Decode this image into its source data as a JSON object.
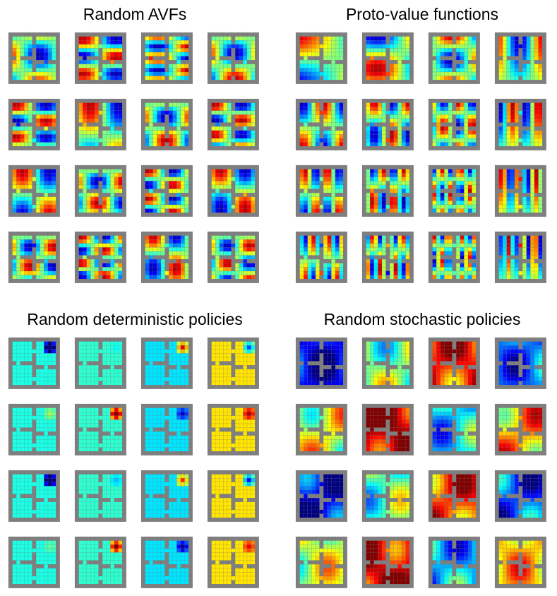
{
  "panels": [
    {
      "title": "Random AVFs",
      "pattern": "random-smooth"
    },
    {
      "title": "Proto-value functions",
      "pattern": "eigen"
    },
    {
      "title": "Random deterministic policies",
      "pattern": "deterministic"
    },
    {
      "title": "Random stochastic policies",
      "pattern": "stochastic"
    }
  ],
  "layout_semantics": {
    "thumbnails_per_panel": "4x4",
    "environment": "four-room gridworld",
    "colormap": "jet",
    "wall_color": "#7f7f7f"
  }
}
